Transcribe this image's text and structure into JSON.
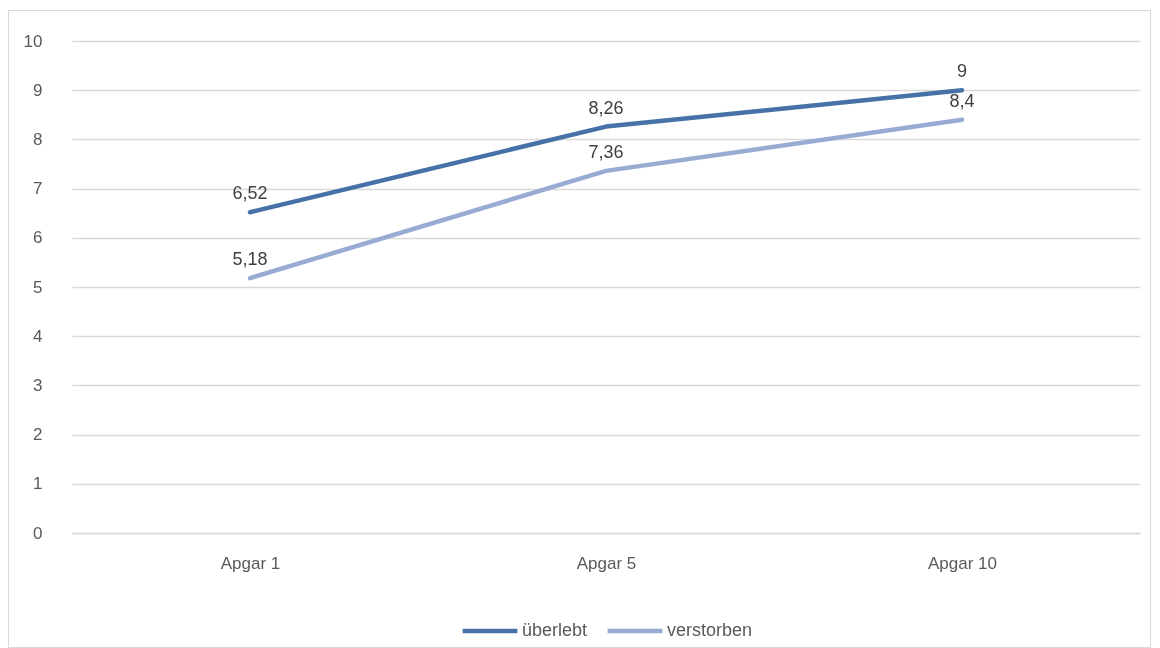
{
  "chart_data": {
    "type": "line",
    "categories": [
      "Apgar 1",
      "Apgar 5",
      "Apgar 10"
    ],
    "series": [
      {
        "name": "überlebt",
        "color": "#4672a8",
        "values": [
          6.52,
          8.26,
          9
        ],
        "value_labels": [
          "6,52",
          "8,26",
          "9"
        ]
      },
      {
        "name": "verstorben",
        "color": "#97abd3",
        "values": [
          5.18,
          7.36,
          8.4
        ],
        "value_labels": [
          "5,18",
          "7,36",
          "8,4"
        ]
      }
    ],
    "ylim": [
      0,
      10
    ],
    "yticks": [
      0,
      1,
      2,
      3,
      4,
      5,
      6,
      7,
      8,
      9,
      10
    ],
    "grid": "y",
    "legend": "bottom"
  }
}
